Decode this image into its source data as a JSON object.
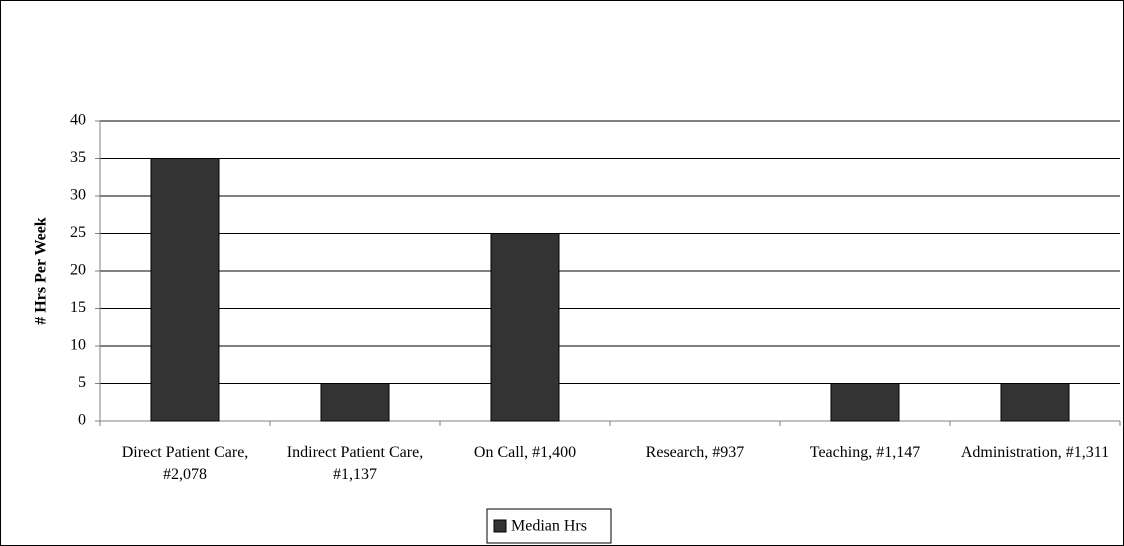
{
  "chart_data": {
    "type": "bar",
    "y_label": "# Hrs Per Week",
    "categories": [
      "Direct Patient Care, #2,078",
      "Indirect Patient Care, #1,137",
      "On Call, #1,400",
      "Research, #937",
      "Teaching, #1,147",
      "Administration, #1,311"
    ],
    "series": [
      {
        "name": "Median Hrs",
        "color": "#333333",
        "values": [
          35,
          5,
          25,
          0,
          5,
          5
        ]
      }
    ],
    "ylim": [
      0,
      40
    ],
    "yticks": [
      0,
      5,
      10,
      15,
      20,
      25,
      30,
      35,
      40
    ],
    "grid": true,
    "legend": "bottom"
  }
}
